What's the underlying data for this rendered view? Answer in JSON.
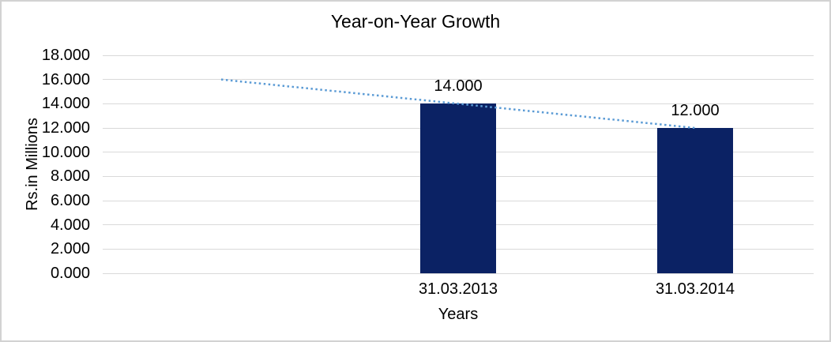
{
  "chart_data": {
    "type": "bar",
    "title": "Year-on-Year Growth",
    "xlabel": "Years",
    "ylabel": "Rs.in Millions",
    "categories": [
      "31.03.2013",
      "31.03.2014"
    ],
    "values": [
      14.0,
      12.0
    ],
    "value_labels": [
      "14.000",
      "12.000"
    ],
    "ylim": [
      0,
      18
    ],
    "ytick_step": 2,
    "ytick_labels": [
      "0.000",
      "2.000",
      "4.000",
      "6.000",
      "8.000",
      "10.000",
      "12.000",
      "14.000",
      "16.000",
      "18.000"
    ],
    "grid": "horizontal-only",
    "legend": "none",
    "bar_color": "#0b2264",
    "trendline": {
      "style": "dotted",
      "color": "#5b9bd5",
      "start_value": 16.0,
      "end_value": 12.0
    }
  },
  "colors": {
    "background": "#ffffff",
    "border": "#d2d2d2",
    "gridline": "#d9d9d9",
    "text": "#000000"
  }
}
